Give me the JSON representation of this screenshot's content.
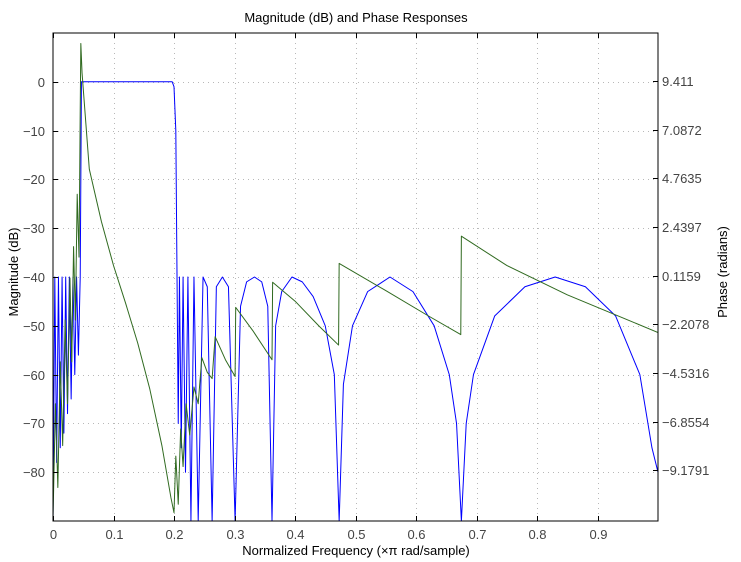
{
  "chart_data": {
    "type": "line",
    "title": "Magnitude (dB) and Phase Responses",
    "xlabel": "Normalized Frequency (×π rad/sample)",
    "ylabel_left": "Magnitude (dB)",
    "ylabel_right": "Phase (radians)",
    "xlim": [
      0,
      1
    ],
    "ylim_left": [
      -90,
      10
    ],
    "ylim_right": [
      -11.6,
      11.7
    ],
    "x_ticks": [
      "0",
      "0.1",
      "0.2",
      "0.3",
      "0.4",
      "0.5",
      "0.6",
      "0.7",
      "0.8",
      "0.9"
    ],
    "x_tick_values": [
      0,
      0.1,
      0.2,
      0.3,
      0.4,
      0.5,
      0.6,
      0.7,
      0.8,
      0.9
    ],
    "left_ticks": [
      "0",
      "−10",
      "−20",
      "−30",
      "−40",
      "−50",
      "−60",
      "−70",
      "−80"
    ],
    "left_tick_values": [
      0,
      -10,
      -20,
      -30,
      -40,
      -50,
      -60,
      -70,
      -80
    ],
    "right_ticks": [
      "9.411",
      "7.0872",
      "4.7635",
      "2.4397",
      "0.1159",
      "−2.2078",
      "−4.5316",
      "−6.8554",
      "−9.1791"
    ],
    "right_tick_values": [
      9.411,
      7.0872,
      4.7635,
      2.4397,
      0.1159,
      -2.2078,
      -4.5316,
      -6.8554,
      -9.1791
    ],
    "grid": true,
    "series": [
      {
        "color": "#0000ff",
        "axis": "left",
        "points": [
          [
            0,
            -90
          ],
          [
            0.003,
            -40
          ],
          [
            0.006,
            -78
          ],
          [
            0.009,
            -40
          ],
          [
            0.012,
            -75
          ],
          [
            0.015,
            -40
          ],
          [
            0.018,
            -72
          ],
          [
            0.021,
            -40
          ],
          [
            0.024,
            -68
          ],
          [
            0.027,
            -40
          ],
          [
            0.03,
            -65
          ],
          [
            0.033,
            -40
          ],
          [
            0.036,
            -60
          ],
          [
            0.039,
            -40
          ],
          [
            0.042,
            -56
          ],
          [
            0.045,
            -40
          ],
          [
            0.047,
            0
          ],
          [
            0.197,
            0
          ],
          [
            0.2,
            -1
          ],
          [
            0.203,
            -10
          ],
          [
            0.205,
            -40
          ],
          [
            0.207,
            -70
          ],
          [
            0.209,
            -40
          ],
          [
            0.212,
            -75
          ],
          [
            0.215,
            -40
          ],
          [
            0.219,
            -80
          ],
          [
            0.223,
            -40
          ],
          [
            0.228,
            -90
          ],
          [
            0.233,
            -40
          ],
          [
            0.24,
            -90
          ],
          [
            0.248,
            -40
          ],
          [
            0.255,
            -42
          ],
          [
            0.263,
            -90
          ],
          [
            0.27,
            -42
          ],
          [
            0.28,
            -40
          ],
          [
            0.29,
            -42
          ],
          [
            0.301,
            -90
          ],
          [
            0.31,
            -46
          ],
          [
            0.32,
            -41
          ],
          [
            0.333,
            -40
          ],
          [
            0.345,
            -41
          ],
          [
            0.355,
            -46
          ],
          [
            0.362,
            -90
          ],
          [
            0.368,
            -50
          ],
          [
            0.378,
            -43
          ],
          [
            0.395,
            -40
          ],
          [
            0.412,
            -41
          ],
          [
            0.43,
            -44
          ],
          [
            0.45,
            -50
          ],
          [
            0.465,
            -60
          ],
          [
            0.473,
            -90
          ],
          [
            0.48,
            -62
          ],
          [
            0.495,
            -50
          ],
          [
            0.52,
            -43
          ],
          [
            0.557,
            -40
          ],
          [
            0.595,
            -43
          ],
          [
            0.63,
            -50
          ],
          [
            0.655,
            -60
          ],
          [
            0.667,
            -70
          ],
          [
            0.675,
            -90
          ],
          [
            0.683,
            -70
          ],
          [
            0.695,
            -60
          ],
          [
            0.73,
            -48
          ],
          [
            0.78,
            -42
          ],
          [
            0.83,
            -40
          ],
          [
            0.88,
            -42
          ],
          [
            0.93,
            -48
          ],
          [
            0.97,
            -60
          ],
          [
            0.99,
            -75
          ],
          [
            1.0,
            -80
          ]
        ]
      },
      {
        "color": "#306a20",
        "axis": "right",
        "points": [
          [
            0,
            -11.5
          ],
          [
            0.004,
            -6
          ],
          [
            0.008,
            -10
          ],
          [
            0.012,
            -4
          ],
          [
            0.016,
            -8
          ],
          [
            0.02,
            -2
          ],
          [
            0.024,
            -6
          ],
          [
            0.028,
            0
          ],
          [
            0.031,
            -4
          ],
          [
            0.034,
            1.5
          ],
          [
            0.037,
            -2
          ],
          [
            0.04,
            4
          ],
          [
            0.043,
            1
          ],
          [
            0.045,
            8
          ],
          [
            0.046,
            11.2
          ],
          [
            0.048,
            9.8
          ],
          [
            0.06,
            5.2
          ],
          [
            0.08,
            2.7
          ],
          [
            0.1,
            0.6
          ],
          [
            0.12,
            -1.2
          ],
          [
            0.14,
            -3.1
          ],
          [
            0.16,
            -5.3
          ],
          [
            0.18,
            -8.0
          ],
          [
            0.195,
            -10.5
          ],
          [
            0.2,
            -11.2
          ],
          [
            0.203,
            -8.5
          ],
          [
            0.207,
            -10.8
          ],
          [
            0.211,
            -7.2
          ],
          [
            0.215,
            -9.0
          ],
          [
            0.22,
            -6.0
          ],
          [
            0.226,
            -7.5
          ],
          [
            0.233,
            -5.2
          ],
          [
            0.24,
            -6.0
          ],
          [
            0.246,
            -3.8
          ],
          [
            0.255,
            -4.5
          ],
          [
            0.263,
            -4.8
          ],
          [
            0.268,
            -2.8
          ],
          [
            0.285,
            -3.9
          ],
          [
            0.301,
            -4.7
          ],
          [
            0.302,
            -1.4
          ],
          [
            0.33,
            -2.5
          ],
          [
            0.362,
            -3.9
          ],
          [
            0.363,
            -0.2
          ],
          [
            0.4,
            -1.1
          ],
          [
            0.44,
            -2.3
          ],
          [
            0.472,
            -3.2
          ],
          [
            0.473,
            0.7
          ],
          [
            0.55,
            -0.6
          ],
          [
            0.62,
            -1.8
          ],
          [
            0.674,
            -2.7
          ],
          [
            0.675,
            2.0
          ],
          [
            0.75,
            0.6
          ],
          [
            0.85,
            -0.8
          ],
          [
            0.95,
            -2.0
          ],
          [
            1.0,
            -2.6
          ]
        ]
      }
    ]
  }
}
